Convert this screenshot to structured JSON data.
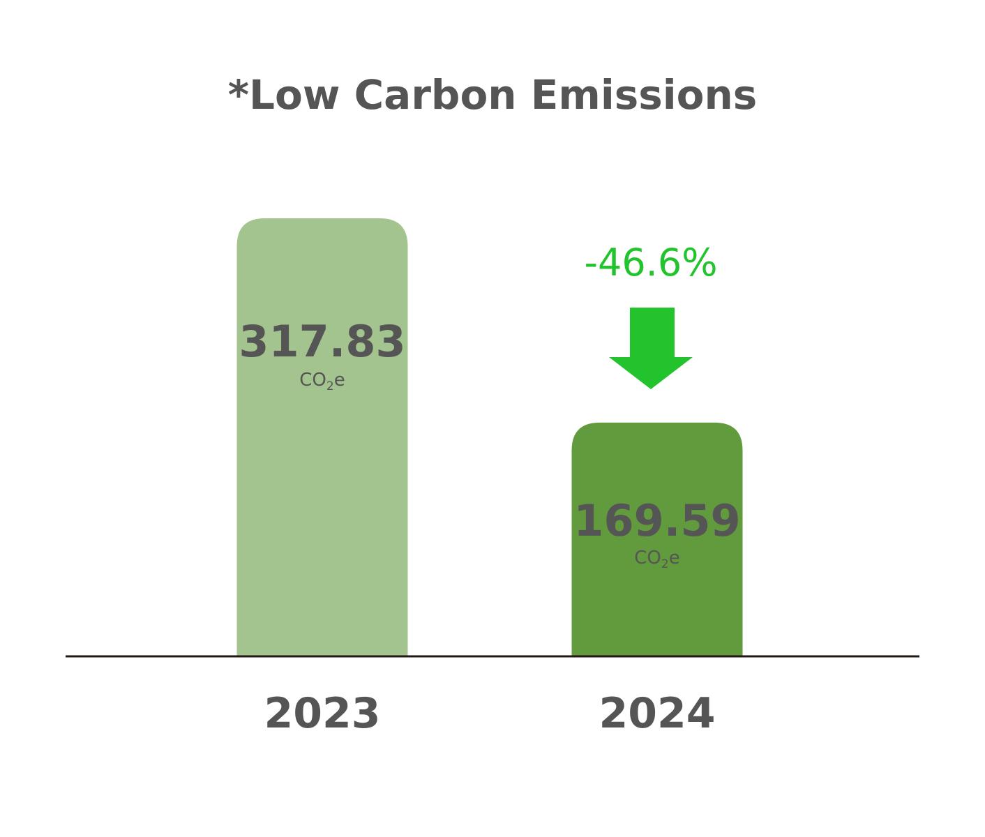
{
  "chart_data": {
    "type": "bar",
    "title": "*Low Carbon Emissions",
    "categories": [
      "2023",
      "2024"
    ],
    "values": [
      317.83,
      169.59
    ],
    "value_labels": [
      "317.83",
      "169.59"
    ],
    "unit": {
      "base": "CO",
      "subscript": "2",
      "suffix": "e"
    },
    "change_annotation": "-46.6%",
    "change_direction": "down",
    "xlabel": "",
    "ylabel": "",
    "ylim": [
      0,
      317.83
    ],
    "grid": false,
    "legend": "none",
    "colors": {
      "bars": [
        "#a3c48f",
        "#629a3e"
      ],
      "text": "#555555",
      "change": "#22c32c",
      "baseline": "#231815"
    }
  }
}
